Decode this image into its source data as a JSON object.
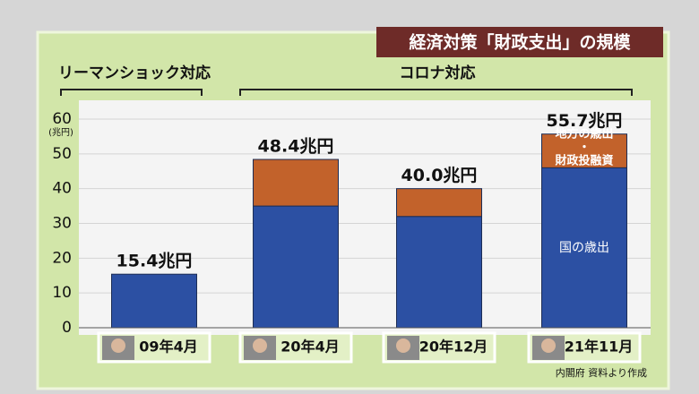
{
  "chart_data": {
    "type": "stacked-bar",
    "title": "経済対策「財政支出」の規模",
    "group_labels": [
      "リーマンショック対応",
      "コロナ対応"
    ],
    "y_unit": "(兆円)",
    "categories": [
      "09年4月",
      "20年4月",
      "20年12月",
      "21年11月"
    ],
    "series": [
      {
        "name": "国の歳出",
        "color": "#2c50a3",
        "values": [
          15.4,
          35,
          32,
          46
        ]
      },
      {
        "label_lines": [
          "地方の歳出",
          "・",
          "財政投融資"
        ],
        "color": "#c2622b",
        "values": [
          0,
          13.4,
          8,
          9.7
        ]
      }
    ],
    "totals": [
      15.4,
      48.4,
      40.0,
      55.7
    ],
    "total_labels": [
      "15.4兆円",
      "48.4兆円",
      "40.0兆円",
      "55.7兆円"
    ],
    "ylim": [
      0,
      60
    ],
    "yticks": [
      0,
      10,
      20,
      30,
      40,
      50,
      60
    ],
    "grid": true,
    "source": "内閣府 資料より作成"
  }
}
